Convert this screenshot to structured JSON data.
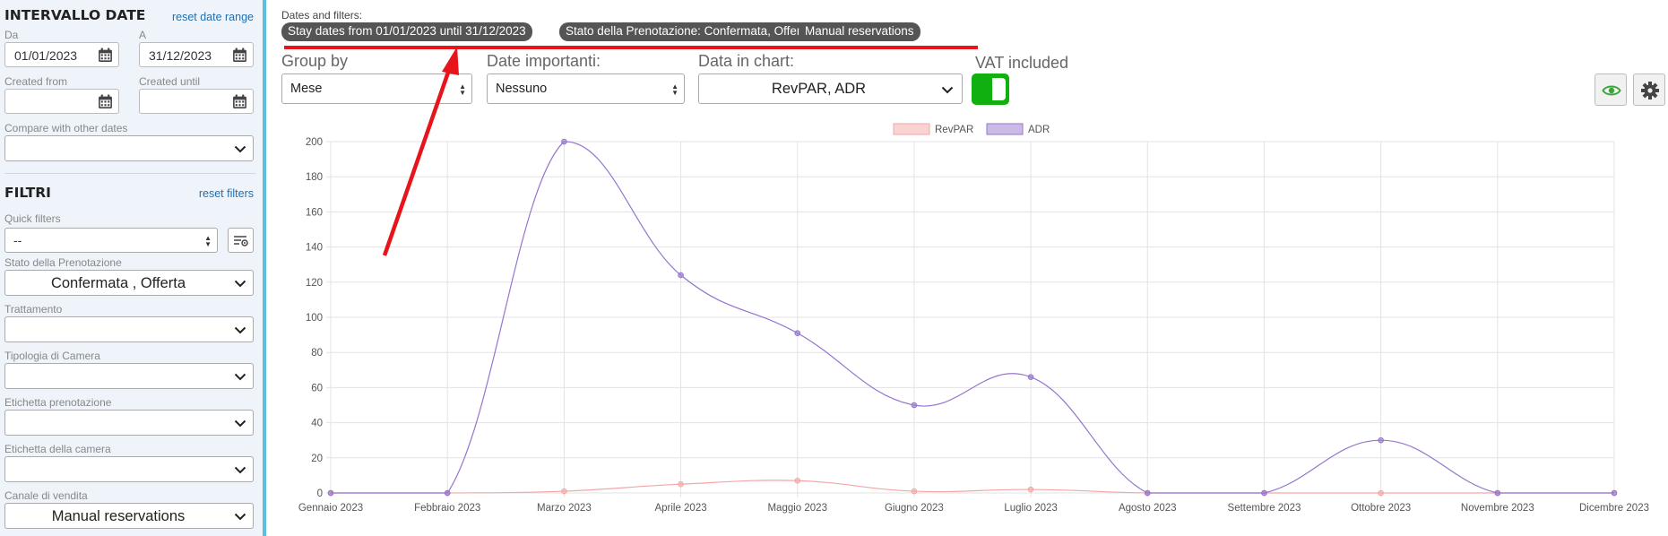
{
  "sidebar": {
    "date_section": {
      "title": "INTERVALLO DATE",
      "reset_link": "reset date range",
      "from_label": "Da",
      "to_label": "A",
      "from_value": "01/01/2023",
      "to_value": "31/12/2023",
      "created_from_label": "Created from",
      "created_until_label": "Created until",
      "created_from_value": "",
      "created_until_value": "",
      "compare_label": "Compare with other dates",
      "compare_value": ""
    },
    "filters_section": {
      "title": "FILTRI",
      "reset_link": "reset filters",
      "quick_filters_label": "Quick filters",
      "quick_filters_value": "--",
      "booking_status_label": "Stato della Prenotazione",
      "booking_status_value": "Confermata , Offerta",
      "treatment_label": "Trattamento",
      "treatment_value": "",
      "room_type_label": "Tipologia di Camera",
      "room_type_value": "",
      "booking_tag_label": "Etichetta prenotazione",
      "booking_tag_value": "",
      "room_tag_label": "Etichetta della camera",
      "room_tag_value": "",
      "sales_channel_label": "Canale di vendita",
      "sales_channel_value": "Manual reservations"
    }
  },
  "main": {
    "filters_title": "Dates and filters:",
    "chips": [
      "Stay dates from 01/01/2023 until 31/12/2023",
      "Stato della Prenotazione: Confermata, Offerta",
      "Manual reservations"
    ],
    "group_by_label": "Group by",
    "group_by_value": "Mese",
    "important_dates_label": "Date importanti:",
    "important_dates_value": "Nessuno",
    "data_in_chart_label": "Data in chart:",
    "data_in_chart_value": "RevPAR, ADR",
    "vat_label": "VAT included",
    "vat_on": true,
    "icons": [
      "eye-icon",
      "gear-icon"
    ],
    "annotation_color": "#e8141c"
  },
  "chart_data": {
    "type": "line",
    "categories": [
      "Gennaio 2023",
      "Febbraio 2023",
      "Marzo 2023",
      "Aprile  2023",
      "Maggio 2023",
      "Giugno  2023",
      "Luglio 2023",
      "Agosto 2023",
      "Settembre 2023",
      "Ottobre 2023",
      "Novembre 2023",
      "Dicembre 2023"
    ],
    "series": [
      {
        "name": "RevPAR",
        "color": "#f4a6a6",
        "values": [
          0,
          0,
          1,
          5,
          7,
          1,
          2,
          0,
          0,
          0,
          0,
          0
        ]
      },
      {
        "name": "ADR",
        "color": "#9575cd",
        "values": [
          0,
          0,
          200,
          124,
          91,
          50,
          66,
          0,
          0,
          30,
          0,
          0
        ]
      }
    ],
    "yticks": [
      0,
      20,
      40,
      60,
      80,
      100,
      120,
      140,
      160,
      180,
      200
    ],
    "ylim": [
      0,
      200
    ],
    "grid": true,
    "legend": "top-center",
    "smooth": true
  }
}
